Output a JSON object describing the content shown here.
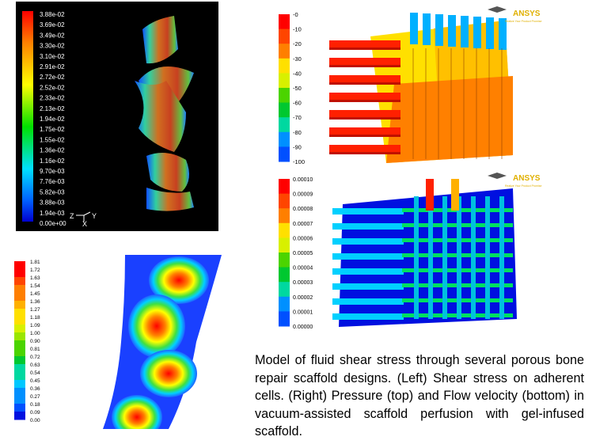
{
  "panel_shear_cells": {
    "legend": [
      "3.88e-02",
      "3.69e-02",
      "3.49e-02",
      "3.30e-02",
      "3.10e-02",
      "2.91e-02",
      "2.72e-02",
      "2.52e-02",
      "2.33e-02",
      "2.13e-02",
      "1.94e-02",
      "1.75e-02",
      "1.55e-02",
      "1.36e-02",
      "1.16e-02",
      "9.70e-03",
      "7.76e-03",
      "5.82e-03",
      "3.88e-03",
      "1.94e-03",
      "0.00e+00"
    ],
    "axis_z": "Z",
    "axis_y": "Y",
    "axis_x": "X"
  },
  "panel_pressure": {
    "legend": [
      "-0",
      "-10",
      "-20",
      "-30",
      "-40",
      "-50",
      "-60",
      "-70",
      "-80",
      "-90",
      "-100"
    ],
    "logo": "ANSYS",
    "logo_sub": "Realize Your Product Promise"
  },
  "panel_velocity": {
    "legend": [
      "0.00010",
      "0.00009",
      "0.00008",
      "0.00007",
      "0.00006",
      "0.00005",
      "0.00004",
      "0.00003",
      "0.00002",
      "0.00001",
      "0.00000"
    ],
    "logo": "ANSYS",
    "logo_sub": "Realize Your Product Promise"
  },
  "panel_shear_scaffold": {
    "legend": [
      "1.81",
      "1.72",
      "1.63",
      "1.54",
      "1.45",
      "1.36",
      "1.27",
      "1.18",
      "1.09",
      "1.00",
      "0.90",
      "0.81",
      "0.72",
      "0.63",
      "0.54",
      "0.45",
      "0.36",
      "0.27",
      "0.18",
      "0.09",
      "0.00"
    ]
  },
  "caption": "Model of fluid shear stress through several porous bone repair scaffold designs.   (Left) Shear stress on adherent cells.   (Right) Pressure (top) and Flow velocity (bottom) in vacuum-assisted scaffold perfusion with gel-infused scaffold.",
  "colors": {
    "scale": [
      "#ff0000",
      "#ff4500",
      "#ff7f00",
      "#ffb000",
      "#ffe000",
      "#d8f000",
      "#9ae600",
      "#4bd400",
      "#00c830",
      "#00d8a0",
      "#00c8ff",
      "#0090ff",
      "#0050ff",
      "#0010e0"
    ]
  }
}
